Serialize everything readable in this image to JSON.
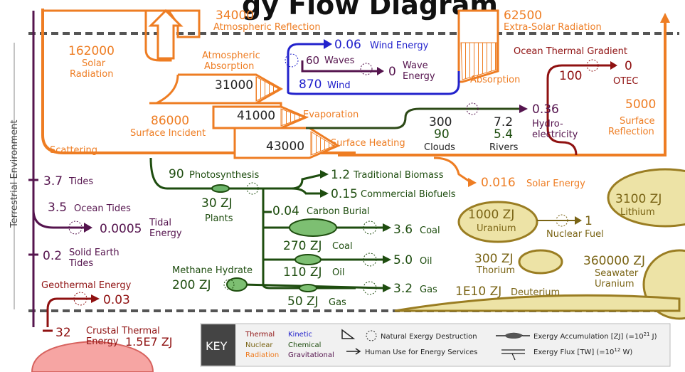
{
  "title_partial": "gy Flow Diagram",
  "top": {
    "atmospheric_reflection_value": "34000",
    "atmospheric_reflection_label": "Atmospheric Reflection",
    "extra_solar_value": "62500",
    "extra_solar_label": "Extra-Solar Radiation"
  },
  "solar": {
    "value": "162000",
    "label_line1": "Solar",
    "label_line2": "Radiation",
    "scattering": "Scattering",
    "atm_absorption_line1": "Atmospheric",
    "atm_absorption_line2": "Absorption",
    "atm_absorption_value": "31000",
    "surface_incident_value": "86000",
    "surface_incident_label": "Surface Incident",
    "evaporation_value": "41000",
    "evaporation_label": "Evaporation",
    "surface_heating_value": "43000",
    "surface_heating_label": "Surface Heating",
    "solar_energy_value": "0.016",
    "solar_energy_label": "Solar Energy",
    "absorption_label": "Absorption",
    "surface_reflection_value": "5000",
    "surface_reflection_line1": "Surface",
    "surface_reflection_line2": "Reflection"
  },
  "wind": {
    "wind_energy_value": "0.06",
    "wind_energy_label": "Wind Energy",
    "waves_value": "60",
    "waves_label": "Waves",
    "wave_energy_value": "0",
    "wave_energy_line1": "Wave",
    "wave_energy_line2": "Energy",
    "wind_value": "870",
    "wind_label": "Wind"
  },
  "ocean_thermal": {
    "label": "Ocean Thermal Gradient",
    "value": "100",
    "otec_value": "0",
    "otec_label": "OTEC"
  },
  "hydro": {
    "clouds_value1": "300",
    "clouds_value2": "90",
    "clouds_label": "Clouds",
    "rivers_value1": "7.2",
    "rivers_value2": "5.4",
    "rivers_label": "Rivers",
    "hydro_value": "0.36",
    "hydro_line1": "Hydro-",
    "hydro_line2": "electricity"
  },
  "tides": {
    "side_label": "Terrestrial Environment",
    "tides_value": "3.7",
    "tides_label": "Tides",
    "ocean_tides_value": "3.5",
    "ocean_tides_label": "Ocean Tides",
    "tidal_value": "0.0005",
    "tidal_line1": "Tidal",
    "tidal_line2": "Energy",
    "solid_earth_value": "0.2",
    "solid_earth_line1": "Solid Earth",
    "solid_earth_line2": "Tides"
  },
  "geothermal": {
    "label": "Geothermal Energy",
    "value": "0.03",
    "crustal_value": "32",
    "crustal_line1": "Crustal Thermal",
    "crustal_line2": "Energy",
    "crustal_stock": "1.5E7 ZJ"
  },
  "bio": {
    "photosynthesis_value": "90",
    "photosynthesis_label": "Photosynthesis",
    "plants_value": "30 ZJ",
    "plants_label": "Plants",
    "traditional_value": "1.2",
    "traditional_label": "Traditional Biomass",
    "commercial_value": "0.15",
    "commercial_label": "Commercial Biofuels",
    "carbon_burial_value": "0.04",
    "carbon_burial_label": "Carbon Burial",
    "coal_stock": "270 ZJ",
    "coal_stock_label": "Coal",
    "coal_value": "3.6",
    "coal_label": "Coal",
    "oil_stock": "110 ZJ",
    "oil_stock_label": "Oil",
    "oil_value": "5.0",
    "oil_label": "Oil",
    "methane_label": "Methane Hydrate",
    "methane_value": "200 ZJ",
    "gas_stock": "50 ZJ",
    "gas_stock_label": "Gas",
    "gas_value": "3.2",
    "gas_label": "Gas"
  },
  "nuclear": {
    "uranium_value": "1000 ZJ",
    "uranium_label": "Uranium",
    "nuclear_fuel_value": "1",
    "nuclear_fuel_label": "Nuclear Fuel",
    "lithium_value": "3100 ZJ",
    "lithium_label": "Lithium",
    "thorium_value": "300 ZJ",
    "thorium_label": "Thorium",
    "seawater_value": "360000 ZJ",
    "seawater_line1": "Seawater",
    "seawater_line2": "Uranium",
    "deuterium_value": "1E10 ZJ",
    "deuterium_label": "Deuterium"
  },
  "key": {
    "title": "KEY",
    "thermal": "Thermal",
    "kinetic": "Kinetic",
    "nuclear": "Nuclear",
    "chemical": "Chemical",
    "radiation": "Radiation",
    "gravitational": "Gravitational",
    "natural_destruction": "Natural Exergy Destruction",
    "human_use": "Human Use for Energy Services",
    "accumulation": "Exergy Accumulation [ZJ] (=10",
    "accumulation_exp": "21",
    "accumulation_unit": " J)",
    "flux": "Exergy Flux [TW] (=10",
    "flux_exp": "12",
    "flux_unit": " W)"
  },
  "colors": {
    "radiation": "#ee7d23",
    "kinetic": "#2222cc",
    "gravitational": "#55144e",
    "chemical": "#1e4d0f",
    "thermal": "#8f1111",
    "nuclear": "#7a6415",
    "nuclear_fill": "#ede3a6"
  }
}
